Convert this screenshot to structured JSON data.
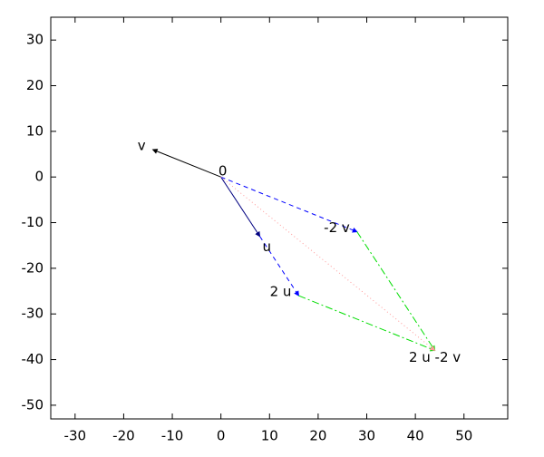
{
  "chart_data": {
    "type": "vector",
    "xlim": [
      -35,
      59
    ],
    "ylim": [
      -53,
      35
    ],
    "xticks": [
      -30,
      -20,
      -10,
      0,
      10,
      20,
      30,
      40,
      50
    ],
    "yticks": [
      -50,
      -40,
      -30,
      -20,
      -10,
      0,
      10,
      20,
      30
    ],
    "segments": [
      {
        "x": [
          0,
          -14
        ],
        "y": [
          0,
          6
        ],
        "color": "#000000",
        "dash": "solid"
      },
      {
        "x": [
          0,
          8
        ],
        "y": [
          0,
          -13
        ],
        "color": "#000080",
        "dash": "solid"
      },
      {
        "x": [
          8,
          16
        ],
        "y": [
          -13,
          -26
        ],
        "color": "#0000ff",
        "dash": "dashed"
      },
      {
        "x": [
          0,
          28
        ],
        "y": [
          0,
          -12
        ],
        "color": "#0000ff",
        "dash": "dashed"
      },
      {
        "x": [
          16,
          44
        ],
        "y": [
          -26,
          -38
        ],
        "color": "#00dd00",
        "dash": "dashdot"
      },
      {
        "x": [
          28,
          44
        ],
        "y": [
          -12,
          -38
        ],
        "color": "#00dd00",
        "dash": "dashdot"
      },
      {
        "x": [
          0,
          44
        ],
        "y": [
          0,
          -38
        ],
        "color": "#ff9999",
        "dash": "dotted"
      }
    ],
    "labels": [
      {
        "text": "v",
        "x": -14,
        "y": 6,
        "anchor": "end"
      },
      {
        "text": "0",
        "x": 0,
        "y": 0,
        "anchor": "middle"
      },
      {
        "text": "u",
        "x": 8,
        "y": -13,
        "anchor": "start"
      },
      {
        "text": "2 u",
        "x": 16,
        "y": -26,
        "anchor": "end"
      },
      {
        "text": "-2 v",
        "x": 28,
        "y": -12,
        "anchor": "end"
      },
      {
        "text": "2 u -2 v",
        "x": 44,
        "y": -38,
        "anchor": "middle"
      }
    ]
  }
}
